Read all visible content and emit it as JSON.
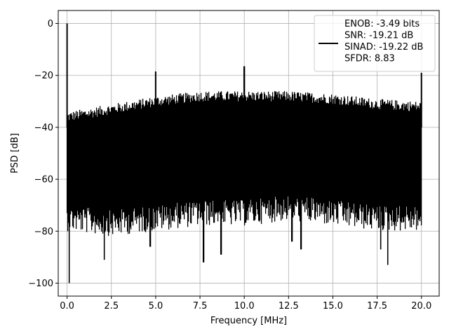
{
  "chart_data": {
    "type": "line",
    "title": "",
    "xlabel": "Frequency [MHz]",
    "ylabel": "PSD [dB]",
    "xlim": [
      -0.5,
      21.0
    ],
    "ylim": [
      -105,
      5
    ],
    "grid": true,
    "legend_position": "top-right",
    "xticks": [
      {
        "value": 0.0,
        "label": "0.0"
      },
      {
        "value": 2.5,
        "label": "2.5"
      },
      {
        "value": 5.0,
        "label": "5.0"
      },
      {
        "value": 7.5,
        "label": "7.5"
      },
      {
        "value": 10.0,
        "label": "10.0"
      },
      {
        "value": 12.5,
        "label": "12.5"
      },
      {
        "value": 15.0,
        "label": "15.0"
      },
      {
        "value": 17.5,
        "label": "17.5"
      },
      {
        "value": 20.0,
        "label": "20.0"
      }
    ],
    "yticks": [
      {
        "value": 0,
        "label": "0"
      },
      {
        "value": -20,
        "label": "−20"
      },
      {
        "value": -40,
        "label": "−40"
      },
      {
        "value": -60,
        "label": "−60"
      },
      {
        "value": -80,
        "label": "−80"
      },
      {
        "value": -100,
        "label": "−100"
      }
    ],
    "series": [
      {
        "color": "#000000",
        "description_of_shape": "dense noise floor between about -80 and -30 dB across 0-20 MHz",
        "envelope_upper": [
          [
            0.0,
            -36
          ],
          [
            2.5,
            -33
          ],
          [
            5.0,
            -30
          ],
          [
            7.5,
            -28
          ],
          [
            10.0,
            -28
          ],
          [
            12.5,
            -28
          ],
          [
            15.0,
            -29
          ],
          [
            17.5,
            -31
          ],
          [
            20.0,
            -32
          ]
        ],
        "envelope_lower": [
          [
            0.0,
            -70
          ],
          [
            2.5,
            -72
          ],
          [
            5.0,
            -70
          ],
          [
            7.5,
            -68
          ],
          [
            10.0,
            -68
          ],
          [
            12.5,
            -66
          ],
          [
            15.0,
            -68
          ],
          [
            17.5,
            -70
          ],
          [
            20.0,
            -70
          ]
        ],
        "peaks": [
          {
            "x": 0.0,
            "y": 0
          },
          {
            "x": 5.0,
            "y": -18.5
          },
          {
            "x": 10.0,
            "y": -16.5
          },
          {
            "x": 20.0,
            "y": -19
          }
        ],
        "dips": [
          {
            "x": 0.12,
            "y": -100
          },
          {
            "x": 2.1,
            "y": -91
          },
          {
            "x": 4.7,
            "y": -86
          },
          {
            "x": 7.7,
            "y": -92
          },
          {
            "x": 8.7,
            "y": -89
          },
          {
            "x": 12.7,
            "y": -84
          },
          {
            "x": 13.2,
            "y": -87
          },
          {
            "x": 17.7,
            "y": -87
          },
          {
            "x": 18.1,
            "y": -93
          }
        ]
      }
    ],
    "legend": {
      "entries": [
        "ENOB: -3.49 bits",
        "SNR: -19.21 dB",
        "SINAD: -19.22 dB",
        "SFDR: 8.83"
      ]
    }
  }
}
